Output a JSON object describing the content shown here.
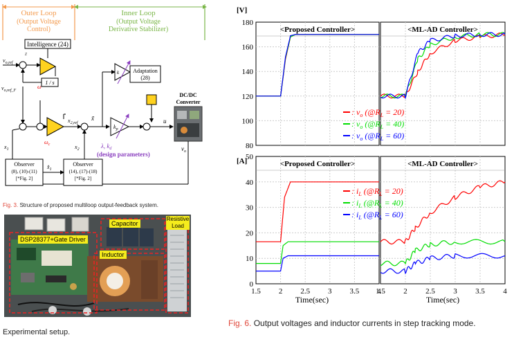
{
  "fig3": {
    "outer_loop": "Outer Loop",
    "outer_sub1": "(Output Voltage",
    "outer_sub2": "Control)",
    "inner_loop": "Inner Loop",
    "inner_sub1": "(Output Voltage",
    "inner_sub2": "Derivative Stabilizer)",
    "intelligence": "Intelligence (24)",
    "v_o_ref": "v",
    "v_o_ref_sub": "o,ref",
    "v_o_ref_F": "v",
    "v_o_ref_F_sub": "o,ref_F",
    "one_over_s": "1 / s",
    "x2ref": "x",
    "x2ref_sub": "2,ref",
    "adaptation": "Adaptation",
    "adaptation_eq": "(28)",
    "k_hat": "k",
    "kd": "k",
    "kd_sub": "p",
    "design_params": "(design parameters)",
    "lambda_kd": "λ, k",
    "lambda_kd_sub": "d",
    "u": "u",
    "converter1": "DC/DC",
    "converter2": "Converter",
    "vo": "v",
    "vo_sub": "o",
    "obs1_title": "Observer",
    "obs1_eq": "(8), (10)-(11)",
    "obs1_ref": "[*Fig. 2]",
    "obs2_title": "Observer",
    "obs2_eq": "(14), (17)-(18)",
    "obs2_ref": "[*Fig. 2]",
    "x1": "x",
    "x1_sub": "1",
    "x2": "x",
    "x2_sub": "2",
    "omega_c": "ω",
    "omega_c_sub": "c",
    "caption_label": "Fig. 3.",
    "caption_text": "Structure of proposed multiloop output-feedback system."
  },
  "photo": {
    "dsp_label": "DSP28377+Gate Driver",
    "capacitor_label": "Capacitor",
    "inductor_label": "Inductor",
    "load_label_1": "Resistive",
    "load_label_2": "Load",
    "caption_text": "Experimental setup."
  },
  "fig6": {
    "caption_label": "Fig. 6.",
    "caption_text": "Output voltages and inductor currents in step tracking mode.",
    "top_unit": "[V]",
    "bottom_unit": "[A]",
    "left_title": "<Proposed Controller>",
    "right_title": "<ML-AD Controller>",
    "xlabel": "Time(sec)",
    "legend_v": [
      {
        "text": ": v",
        "sub": "o",
        "cond": "(@R",
        "csub": "L",
        "val": "= 20)",
        "color": "#ff0000"
      },
      {
        "text": ": v",
        "sub": "o",
        "cond": "(@R",
        "csub": "L",
        "val": "= 40)",
        "color": "#00dd00"
      },
      {
        "text": ": v",
        "sub": "o",
        "cond": "(@R",
        "csub": "L",
        "val": "= 60)",
        "color": "#0000ff"
      }
    ],
    "legend_i": [
      {
        "text": ": i",
        "sub": "L",
        "cond": "(@R",
        "csub": "L",
        "val": "= 20)",
        "color": "#ff0000"
      },
      {
        "text": ": i",
        "sub": "L",
        "cond": "(@R",
        "csub": "L",
        "val": "= 40)",
        "color": "#00dd00"
      },
      {
        "text": ": i",
        "sub": "L",
        "cond": "(@R",
        "csub": "L",
        "val": "= 60)",
        "color": "#0000ff"
      }
    ]
  },
  "chart_data": [
    {
      "type": "line",
      "title": "<Proposed Controller>",
      "ylabel": "[V]",
      "xlim": [
        1.5,
        4
      ],
      "ylim": [
        80,
        180
      ],
      "yticks": [
        80,
        100,
        120,
        140,
        160,
        180
      ],
      "series": [
        {
          "name": "v_o (@R_L = 20)",
          "color": "#ff0000",
          "x": [
            1.5,
            2.0,
            2.1,
            2.2,
            2.3,
            4.0
          ],
          "y": [
            120,
            120,
            150,
            168,
            170,
            170
          ]
        },
        {
          "name": "v_o (@R_L = 40)",
          "color": "#00dd00",
          "x": [
            1.5,
            2.0,
            2.1,
            2.2,
            2.3,
            4.0
          ],
          "y": [
            120,
            120,
            151,
            168,
            170,
            170
          ]
        },
        {
          "name": "v_o (@R_L = 60)",
          "color": "#0000ff",
          "x": [
            1.5,
            2.0,
            2.1,
            2.2,
            2.3,
            4.0
          ],
          "y": [
            120,
            120,
            152,
            169,
            170,
            170
          ]
        }
      ]
    },
    {
      "type": "line",
      "title": "<ML-AD Controller>",
      "ylabel": "[V]",
      "xlim": [
        1.5,
        4
      ],
      "ylim": [
        80,
        180
      ],
      "series": [
        {
          "name": "v_o (@R_L = 20)",
          "color": "#ff0000",
          "x": [
            1.5,
            2.0,
            2.25,
            2.5,
            3.0,
            3.5,
            4.0
          ],
          "y": [
            120,
            120,
            140,
            155,
            165,
            168,
            170
          ]
        },
        {
          "name": "v_o (@R_L = 40)",
          "color": "#00dd00",
          "x": [
            1.5,
            2.0,
            2.25,
            2.5,
            3.0,
            3.5,
            4.0
          ],
          "y": [
            120,
            120,
            150,
            162,
            168,
            170,
            170
          ]
        },
        {
          "name": "v_o (@R_L = 60)",
          "color": "#0000ff",
          "x": [
            1.5,
            2.0,
            2.25,
            2.5,
            3.0,
            3.5,
            4.0
          ],
          "y": [
            120,
            120,
            155,
            165,
            169,
            170,
            170
          ]
        }
      ]
    },
    {
      "type": "line",
      "title": "<Proposed Controller>",
      "ylabel": "[A]",
      "xlabel": "Time(sec)",
      "xlim": [
        1.5,
        4
      ],
      "ylim": [
        0,
        50
      ],
      "yticks": [
        0,
        10,
        20,
        30,
        40,
        50
      ],
      "xticks": [
        1.5,
        2,
        2.5,
        3,
        3.5,
        4
      ],
      "series": [
        {
          "name": "i_L (@R_L = 20)",
          "color": "#ff0000",
          "x": [
            1.5,
            2.0,
            2.08,
            2.2,
            2.3,
            4.0
          ],
          "y": [
            16.5,
            16.5,
            34,
            40,
            40,
            40
          ]
        },
        {
          "name": "i_L (@R_L = 40)",
          "color": "#00dd00",
          "x": [
            1.5,
            2.0,
            2.05,
            2.15,
            4.0
          ],
          "y": [
            8,
            8,
            15,
            16.5,
            16.5
          ]
        },
        {
          "name": "i_L (@R_L = 60)",
          "color": "#0000ff",
          "x": [
            1.5,
            2.0,
            2.05,
            2.15,
            4.0
          ],
          "y": [
            5,
            5,
            10,
            11,
            11
          ]
        }
      ]
    },
    {
      "type": "line",
      "title": "<ML-AD Controller>",
      "ylabel": "[A]",
      "xlabel": "Time(sec)",
      "xlim": [
        1.5,
        4
      ],
      "ylim": [
        0,
        50
      ],
      "xticks": [
        1.5,
        2,
        2.5,
        3,
        3.5,
        4
      ],
      "series": [
        {
          "name": "i_L (@R_L = 20)",
          "color": "#ff0000",
          "x": [
            1.5,
            2.0,
            2.2,
            2.5,
            3.0,
            3.5,
            4.0
          ],
          "y": [
            16.5,
            16.5,
            22,
            28,
            34,
            38,
            40
          ]
        },
        {
          "name": "i_L (@R_L = 40)",
          "color": "#00dd00",
          "x": [
            1.5,
            2.0,
            2.2,
            2.5,
            3.0,
            4.0
          ],
          "y": [
            8,
            8,
            13,
            15.5,
            16.5,
            16.5
          ]
        },
        {
          "name": "i_L (@R_L = 60)",
          "color": "#0000ff",
          "x": [
            1.5,
            2.0,
            2.2,
            2.5,
            3.0,
            4.0
          ],
          "y": [
            5,
            5,
            8,
            10,
            11,
            11
          ]
        }
      ]
    }
  ]
}
